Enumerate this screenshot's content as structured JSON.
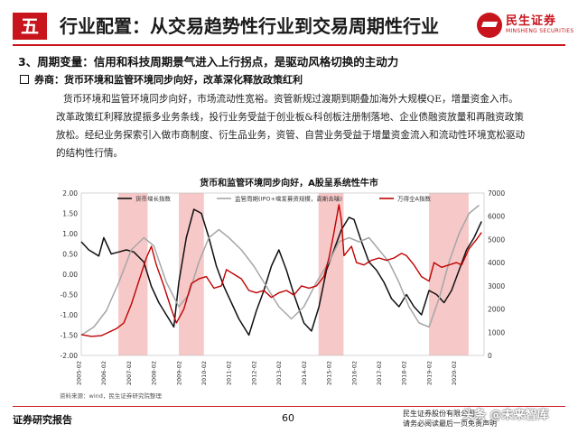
{
  "header": {
    "section_no": "五",
    "title": "行业配置：从交易趋势性行业到交易周期性行业",
    "logo_cn": "民生证券",
    "logo_en": "MINSHENG SECURITIES"
  },
  "subheading": "3、周期变量：信用和科技周期景气进入上行拐点，是驱动风格切换的主动力",
  "bullet": "券商：货币环境和监管环境同步向好，改革深化释放政策红利",
  "paragraph_lines": [
    "货币环境和监管环境同步向好，市场流动性宽裕。资管新规过渡期到期叠加海外大规模QE，增量资金入市。",
    "改革政策红利释放提振多业务条线，投行业务受益于创业板&科创板注册制落地、企业债融资放量和再融资政策",
    "放松。经纪业务探索引入做市商制度、衍生品业务，资管、自营业务受益于增量资金流入和流动性环境宽松驱动",
    "的结构性行情。"
  ],
  "chart_data": {
    "type": "line",
    "title": "货币和监管环境同步向好，A股呈系统性牛市",
    "y_left": {
      "ticks": [
        "2.00",
        "1.50",
        "1.00",
        "0.50",
        "0.00",
        "-0.50",
        "-1.00",
        "-1.50",
        "-2.00"
      ],
      "range": [
        -2,
        2
      ]
    },
    "y_right": {
      "ticks": [
        "7000",
        "6000",
        "5000",
        "4000",
        "3000",
        "2000",
        "1000",
        "0"
      ],
      "range": [
        0,
        7000
      ]
    },
    "x_ticks": [
      "2005-02",
      "2006-02",
      "2007-02",
      "2008-02",
      "2009-02",
      "2010-02",
      "2011-02",
      "2012-02",
      "2013-02",
      "2014-02",
      "2015-02",
      "2016-02",
      "2017-02",
      "2018-02",
      "2019-02",
      "2020-02"
    ],
    "legend": [
      "货币增长指数",
      "监管周期(IPO+增发募资规模，高斯去噪)",
      "万得全A指数"
    ],
    "colors": {
      "money": "#111111",
      "regulation": "#a6a6a6",
      "wind": "#c00000",
      "band": "#f4b6b6"
    },
    "bands": [
      [
        "2006-08",
        "2007-10"
      ],
      [
        "2009-01",
        "2010-01"
      ],
      [
        "2014-08",
        "2015-08"
      ],
      [
        "2019-01",
        "2020-08"
      ]
    ],
    "series": [
      {
        "name": "货币增长指数",
        "axis": "left",
        "color": "#111111",
        "points": [
          [
            2005.1,
            0.8
          ],
          [
            2005.4,
            0.6
          ],
          [
            2005.8,
            0.45
          ],
          [
            2006.0,
            0.9
          ],
          [
            2006.3,
            0.5
          ],
          [
            2006.6,
            0.55
          ],
          [
            2006.9,
            0.6
          ],
          [
            2007.2,
            0.55
          ],
          [
            2007.6,
            0.3
          ],
          [
            2007.9,
            -0.3
          ],
          [
            2008.2,
            -0.7
          ],
          [
            2008.5,
            -1.0
          ],
          [
            2008.8,
            -1.3
          ],
          [
            2009.0,
            -0.2
          ],
          [
            2009.3,
            0.9
          ],
          [
            2009.6,
            1.6
          ],
          [
            2009.9,
            1.5
          ],
          [
            2010.2,
            0.9
          ],
          [
            2010.5,
            0.2
          ],
          [
            2010.8,
            -0.3
          ],
          [
            2011.1,
            -0.7
          ],
          [
            2011.4,
            -1.1
          ],
          [
            2011.8,
            -1.5
          ],
          [
            2012.1,
            -0.9
          ],
          [
            2012.4,
            -0.4
          ],
          [
            2012.7,
            0.2
          ],
          [
            2013.0,
            0.6
          ],
          [
            2013.3,
            0.1
          ],
          [
            2013.6,
            -0.5
          ],
          [
            2014.0,
            -1.2
          ],
          [
            2014.3,
            -1.4
          ],
          [
            2014.6,
            -0.8
          ],
          [
            2014.9,
            0.1
          ],
          [
            2015.2,
            0.6
          ],
          [
            2015.5,
            1.1
          ],
          [
            2015.8,
            1.4
          ],
          [
            2016.0,
            1.35
          ],
          [
            2016.3,
            0.8
          ],
          [
            2016.6,
            0.3
          ],
          [
            2016.9,
            0.1
          ],
          [
            2017.2,
            -0.2
          ],
          [
            2017.5,
            -0.6
          ],
          [
            2017.8,
            -0.8
          ],
          [
            2018.1,
            -0.5
          ],
          [
            2018.4,
            -0.8
          ],
          [
            2018.7,
            -1.0
          ],
          [
            2019.0,
            -0.4
          ],
          [
            2019.3,
            -0.5
          ],
          [
            2019.6,
            -0.7
          ],
          [
            2019.9,
            -0.4
          ],
          [
            2020.2,
            0.1
          ],
          [
            2020.5,
            0.6
          ],
          [
            2020.8,
            0.9
          ],
          [
            2021.1,
            1.3
          ]
        ]
      },
      {
        "name": "监管周期(IPO+增发募资规模，高斯去噪)",
        "axis": "left",
        "color": "#a6a6a6",
        "points": [
          [
            2005.1,
            -1.5
          ],
          [
            2005.6,
            -1.3
          ],
          [
            2006.1,
            -0.9
          ],
          [
            2006.6,
            -0.2
          ],
          [
            2007.1,
            0.6
          ],
          [
            2007.6,
            0.9
          ],
          [
            2008.0,
            0.7
          ],
          [
            2008.5,
            -0.2
          ],
          [
            2009.0,
            -0.8
          ],
          [
            2009.4,
            -0.5
          ],
          [
            2009.8,
            0.3
          ],
          [
            2010.2,
            0.9
          ],
          [
            2010.6,
            1.1
          ],
          [
            2011.0,
            0.9
          ],
          [
            2011.5,
            0.6
          ],
          [
            2012.0,
            0.2
          ],
          [
            2012.5,
            -0.3
          ],
          [
            2013.0,
            -0.8
          ],
          [
            2013.5,
            -1.1
          ],
          [
            2014.0,
            -0.8
          ],
          [
            2014.5,
            -0.2
          ],
          [
            2015.0,
            0.3
          ],
          [
            2015.4,
            0.8
          ],
          [
            2015.8,
            0.9
          ],
          [
            2016.2,
            0.8
          ],
          [
            2016.6,
            0.9
          ],
          [
            2017.0,
            0.6
          ],
          [
            2017.4,
            0.3
          ],
          [
            2017.8,
            -0.2
          ],
          [
            2018.2,
            -0.8
          ],
          [
            2018.6,
            -1.2
          ],
          [
            2019.0,
            -1.3
          ],
          [
            2019.4,
            -0.6
          ],
          [
            2019.8,
            0.3
          ],
          [
            2020.2,
            1.0
          ],
          [
            2020.6,
            1.5
          ],
          [
            2021.0,
            1.7
          ]
        ]
      },
      {
        "name": "万得全A指数",
        "axis": "right",
        "color": "#c00000",
        "points": [
          [
            2005.1,
            900
          ],
          [
            2005.5,
            820
          ],
          [
            2005.9,
            850
          ],
          [
            2006.2,
            1000
          ],
          [
            2006.5,
            1150
          ],
          [
            2006.8,
            1400
          ],
          [
            2007.1,
            2200
          ],
          [
            2007.4,
            3200
          ],
          [
            2007.7,
            4200
          ],
          [
            2007.9,
            4700
          ],
          [
            2008.1,
            3900
          ],
          [
            2008.4,
            3000
          ],
          [
            2008.7,
            2000
          ],
          [
            2008.9,
            1400
          ],
          [
            2009.2,
            2000
          ],
          [
            2009.5,
            3100
          ],
          [
            2009.8,
            3300
          ],
          [
            2010.1,
            3400
          ],
          [
            2010.4,
            2900
          ],
          [
            2010.7,
            3000
          ],
          [
            2010.9,
            3700
          ],
          [
            2011.2,
            3500
          ],
          [
            2011.5,
            3300
          ],
          [
            2011.8,
            2800
          ],
          [
            2012.1,
            2700
          ],
          [
            2012.4,
            2800
          ],
          [
            2012.7,
            2500
          ],
          [
            2013.0,
            2700
          ],
          [
            2013.3,
            2800
          ],
          [
            2013.6,
            2600
          ],
          [
            2013.9,
            3000
          ],
          [
            2014.2,
            2900
          ],
          [
            2014.5,
            3000
          ],
          [
            2014.8,
            3400
          ],
          [
            2015.0,
            4200
          ],
          [
            2015.2,
            5300
          ],
          [
            2015.4,
            6500
          ],
          [
            2015.5,
            5800
          ],
          [
            2015.6,
            4300
          ],
          [
            2015.9,
            4700
          ],
          [
            2016.1,
            4000
          ],
          [
            2016.4,
            3900
          ],
          [
            2016.7,
            4100
          ],
          [
            2017.0,
            4200
          ],
          [
            2017.3,
            4100
          ],
          [
            2017.6,
            4200
          ],
          [
            2017.9,
            4400
          ],
          [
            2018.1,
            4300
          ],
          [
            2018.4,
            3900
          ],
          [
            2018.7,
            3400
          ],
          [
            2019.0,
            3200
          ],
          [
            2019.2,
            4000
          ],
          [
            2019.5,
            3800
          ],
          [
            2019.8,
            3900
          ],
          [
            2020.1,
            4000
          ],
          [
            2020.3,
            3900
          ],
          [
            2020.6,
            4600
          ],
          [
            2020.9,
            5000
          ],
          [
            2021.1,
            5300
          ]
        ]
      }
    ]
  },
  "source": "资料来源：wind，民生证券研究院整理",
  "footer": {
    "left": "证券研究报告",
    "page": "60",
    "right_line1": "民生证券股份有限公司",
    "right_line2": "请务必阅读最后一页免责声明"
  },
  "watermark": "头条 @未来智库"
}
